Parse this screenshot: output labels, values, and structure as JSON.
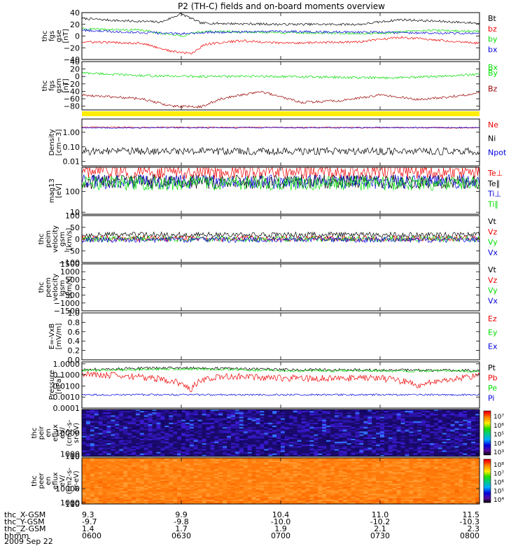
{
  "title": "P2 (TH-C) fields and on-board moments overview",
  "date": "2009 Sep 22",
  "ephemeris": {
    "row_labels": [
      "thc_X-GSM",
      "thc_Y-GSM",
      "thc_Z-GSM",
      "hhmm"
    ],
    "columns": [
      {
        "x": "9.3",
        "y": "-9.7",
        "z": "1.4",
        "time": "0600"
      },
      {
        "x": "9.9",
        "y": "-9.8",
        "z": "1.7",
        "time": "0630"
      },
      {
        "x": "10.4",
        "y": "-10.0",
        "z": "1.9",
        "time": "0700"
      },
      {
        "x": "11.0",
        "y": "-10.2",
        "z": "2.1",
        "time": "0730"
      },
      {
        "x": "11.5",
        "y": "-10.3",
        "z": "2.3",
        "time": "0800"
      }
    ]
  },
  "colors": {
    "black": "#000000",
    "red": "#ee0000",
    "green": "#00dd00",
    "blue": "#0000dd",
    "darkred": "#990000",
    "yellow": "#ffee00"
  },
  "chart_data": [
    {
      "type": "line",
      "id": "fgs_gse",
      "ylabel": [
        "thc",
        "fgs",
        "gse",
        "[nT]"
      ],
      "yticks": [
        "40",
        "20",
        "0",
        "−20",
        "−40"
      ],
      "ylim": [
        -40,
        40
      ],
      "series": [
        {
          "name": "Bt",
          "color": "#000000",
          "knots": [
            [
              6.0,
              30
            ],
            [
              6.2,
              26
            ],
            [
              6.4,
              24
            ],
            [
              6.5,
              38
            ],
            [
              6.6,
              22
            ],
            [
              7.0,
              20
            ],
            [
              7.4,
              20
            ],
            [
              7.6,
              28
            ],
            [
              8.0,
              22
            ]
          ]
        },
        {
          "name": "bz",
          "color": "#ee0000",
          "knots": [
            [
              6.0,
              -10
            ],
            [
              6.3,
              -12
            ],
            [
              6.45,
              -26
            ],
            [
              6.55,
              -30
            ],
            [
              6.62,
              -14
            ],
            [
              6.8,
              -8
            ],
            [
              7.0,
              -12
            ],
            [
              7.4,
              -10
            ],
            [
              7.6,
              -2
            ],
            [
              8.0,
              -12
            ]
          ]
        },
        {
          "name": "by",
          "color": "#00dd00",
          "knots": [
            [
              6.0,
              12
            ],
            [
              6.3,
              10
            ],
            [
              6.5,
              0
            ],
            [
              6.6,
              8
            ],
            [
              7.0,
              6
            ],
            [
              7.5,
              4
            ],
            [
              7.7,
              10
            ],
            [
              8.0,
              8
            ]
          ]
        },
        {
          "name": "bx",
          "color": "#0000dd",
          "knots": [
            [
              6.0,
              10
            ],
            [
              6.3,
              6
            ],
            [
              6.5,
              4
            ],
            [
              6.6,
              6
            ],
            [
              7.0,
              8
            ],
            [
              7.5,
              6
            ],
            [
              8.0,
              4
            ]
          ]
        }
      ]
    },
    {
      "type": "line",
      "id": "fgs_gsm",
      "ylabel": [
        "thc",
        "fgs",
        "gsm",
        "[nT]"
      ],
      "yticks": [
        "40",
        "20",
        "0",
        "−20",
        "−40",
        "−60",
        "−80"
      ],
      "ylim": [
        -90,
        40
      ],
      "series": [
        {
          "name": "Bx",
          "color": "#00dd00",
          "knots": [
            [
              6.0,
              10
            ],
            [
              6.3,
              2
            ],
            [
              6.6,
              0
            ],
            [
              7.0,
              0
            ],
            [
              7.5,
              -4
            ],
            [
              7.8,
              0
            ],
            [
              8.0,
              6
            ]
          ]
        },
        {
          "name": "Bz",
          "color": "#990000",
          "knots": [
            [
              6.0,
              -50
            ],
            [
              6.3,
              -60
            ],
            [
              6.45,
              -80
            ],
            [
              6.6,
              -82
            ],
            [
              6.7,
              -60
            ],
            [
              6.9,
              -40
            ],
            [
              7.1,
              -70
            ],
            [
              7.3,
              -65
            ],
            [
              7.5,
              -50
            ],
            [
              7.7,
              -62
            ],
            [
              7.9,
              -52
            ],
            [
              8.0,
              -45
            ]
          ]
        }
      ],
      "extra_legend": "By"
    },
    {
      "type": "line",
      "id": "density",
      "log": true,
      "ylabel": [
        "Density",
        "[cm−3]"
      ],
      "yticks": [
        "1.00",
        "0.10",
        "0.01"
      ],
      "ylim": [
        0.005,
        8
      ],
      "series": [
        {
          "name": "Ne",
          "color": "#ee0000",
          "knots": [
            [
              6.0,
              2.2
            ],
            [
              8.0,
              2.0
            ]
          ]
        },
        {
          "name": "Ni",
          "color": "#000000",
          "knots": [
            [
              6.0,
              0.05
            ],
            [
              8.0,
              0.05
            ]
          ]
        },
        {
          "name": "Npot",
          "color": "#0000dd",
          "knots": [
            [
              6.0,
              2.0
            ],
            [
              8.0,
              2.1
            ]
          ]
        }
      ]
    },
    {
      "type": "line",
      "id": "temperature",
      "log": true,
      "ylabel": [
        "mag13",
        "[eV]"
      ],
      "yticks": [
        "100",
        "10"
      ],
      "ylim": [
        8,
        1500
      ],
      "series": [
        {
          "name": "Te⊥",
          "color": "#ee0000",
          "knots": [
            [
              6.0,
              900
            ],
            [
              8.0,
              900
            ]
          ]
        },
        {
          "name": "Te∥",
          "color": "#000000",
          "knots": [
            [
              6.0,
              300
            ],
            [
              8.0,
              300
            ]
          ]
        },
        {
          "name": "Ti⊥",
          "color": "#0000dd",
          "knots": [
            [
              6.0,
              300
            ],
            [
              8.0,
              300
            ]
          ]
        },
        {
          "name": "Ti∥",
          "color": "#00dd00",
          "knots": [
            [
              6.0,
              250
            ],
            [
              8.0,
              250
            ]
          ]
        }
      ]
    },
    {
      "type": "line",
      "id": "peim_velocity",
      "ylabel": [
        "thc",
        "peim",
        "velocity",
        "gsm",
        "[km/s]"
      ],
      "yticks": [
        "100",
        "50",
        "0",
        "−50",
        "−100"
      ],
      "ylim": [
        -100,
        100
      ],
      "series": [
        {
          "name": "Vt",
          "color": "#000000",
          "knots": [
            [
              6.0,
              18
            ],
            [
              8.0,
              18
            ]
          ]
        },
        {
          "name": "Vz",
          "color": "#ee0000",
          "knots": [
            [
              6.0,
              2
            ],
            [
              8.0,
              2
            ]
          ]
        },
        {
          "name": "Vy",
          "color": "#00dd00",
          "knots": [
            [
              6.0,
              0
            ],
            [
              8.0,
              0
            ]
          ]
        },
        {
          "name": "Vx",
          "color": "#0000dd",
          "knots": [
            [
              6.0,
              -3
            ],
            [
              8.0,
              -3
            ]
          ]
        }
      ]
    },
    {
      "type": "line",
      "id": "peem_velocity",
      "ylabel": [
        "thc",
        "peem",
        "velocity",
        "gsm",
        "[km/s]"
      ],
      "yticks": [
        "1500",
        "1000",
        "500",
        "0",
        "−500",
        "−1000",
        "−1500"
      ],
      "ylim": [
        -1500,
        1500
      ],
      "series": [
        {
          "name": "Vt",
          "color": "#000000",
          "knots": []
        },
        {
          "name": "Vz",
          "color": "#ee0000",
          "knots": []
        },
        {
          "name": "Vy",
          "color": "#00dd00",
          "knots": [
            [
              6.0,
              1500
            ],
            [
              7.0,
              1500
            ]
          ]
        },
        {
          "name": "Vx",
          "color": "#0000dd",
          "knots": []
        }
      ]
    },
    {
      "type": "line",
      "id": "e_field",
      "ylabel": [
        "E=-VxB",
        "[mV/m]"
      ],
      "yticks": [
        "1.0",
        "0.8",
        "0.6",
        "0.4",
        "0.2",
        "0.0"
      ],
      "ylim": [
        0,
        1
      ],
      "series": [
        {
          "name": "Ez",
          "color": "#ee0000",
          "knots": []
        },
        {
          "name": "Ey",
          "color": "#00dd00",
          "knots": []
        },
        {
          "name": "Ex",
          "color": "#0000dd",
          "knots": []
        }
      ]
    },
    {
      "type": "line",
      "id": "pressure",
      "log": true,
      "ylabel": [
        "Pressure",
        "[nPa]"
      ],
      "yticks": [
        "1.0000",
        "0.1000",
        "0.0100",
        "0.0010",
        "0.0001"
      ],
      "ylim": [
        0.0001,
        1.5
      ],
      "series": [
        {
          "name": "Pt",
          "color": "#000000",
          "knots": [
            [
              6.0,
              0.3
            ],
            [
              6.5,
              0.45
            ],
            [
              7.0,
              0.3
            ],
            [
              8.0,
              0.25
            ]
          ]
        },
        {
          "name": "Pb",
          "color": "#ee0000",
          "knots": [
            [
              6.0,
              0.12
            ],
            [
              6.4,
              0.04
            ],
            [
              6.55,
              0.003
            ],
            [
              6.7,
              0.08
            ],
            [
              7.0,
              0.05
            ],
            [
              7.5,
              0.05
            ],
            [
              7.7,
              0.008
            ],
            [
              8.0,
              0.08
            ]
          ]
        },
        {
          "name": "Pe",
          "color": "#00dd00",
          "knots": [
            [
              6.0,
              0.25
            ],
            [
              6.5,
              0.35
            ],
            [
              7.0,
              0.25
            ],
            [
              8.0,
              0.22
            ]
          ]
        },
        {
          "name": "Pi",
          "color": "#0000dd",
          "knots": [
            [
              6.0,
              0.0016
            ],
            [
              8.0,
              0.0016
            ]
          ]
        }
      ]
    },
    {
      "type": "heatmap",
      "id": "peir_eflux",
      "ylabel": [
        "thc",
        "peir",
        "en",
        "eflux",
        "eV/",
        "(cm2-s-",
        "sr-eV)"
      ],
      "yticks": [
        "10000",
        "1000",
        "100",
        "10"
      ],
      "ylim": [
        10,
        20000
      ],
      "cbar_ticks": [
        "10⁷",
        "10⁶",
        "10⁵",
        "10⁴",
        "10³"
      ],
      "cbar_range": [
        3,
        7.5
      ]
    },
    {
      "type": "heatmap",
      "id": "peer_eflux",
      "ylabel": [
        "thc",
        "peer",
        "en",
        "eflux",
        "eV/",
        "(cm2-s-",
        "sr-eV)"
      ],
      "yticks": [
        "10000",
        "1000",
        "100",
        "10"
      ],
      "ylim": [
        8,
        30000
      ],
      "cbar_ticks": [
        "10⁸",
        "10⁷",
        "10⁶",
        "10⁵",
        "10⁴"
      ],
      "cbar_range": [
        3.5,
        8.5
      ]
    }
  ]
}
